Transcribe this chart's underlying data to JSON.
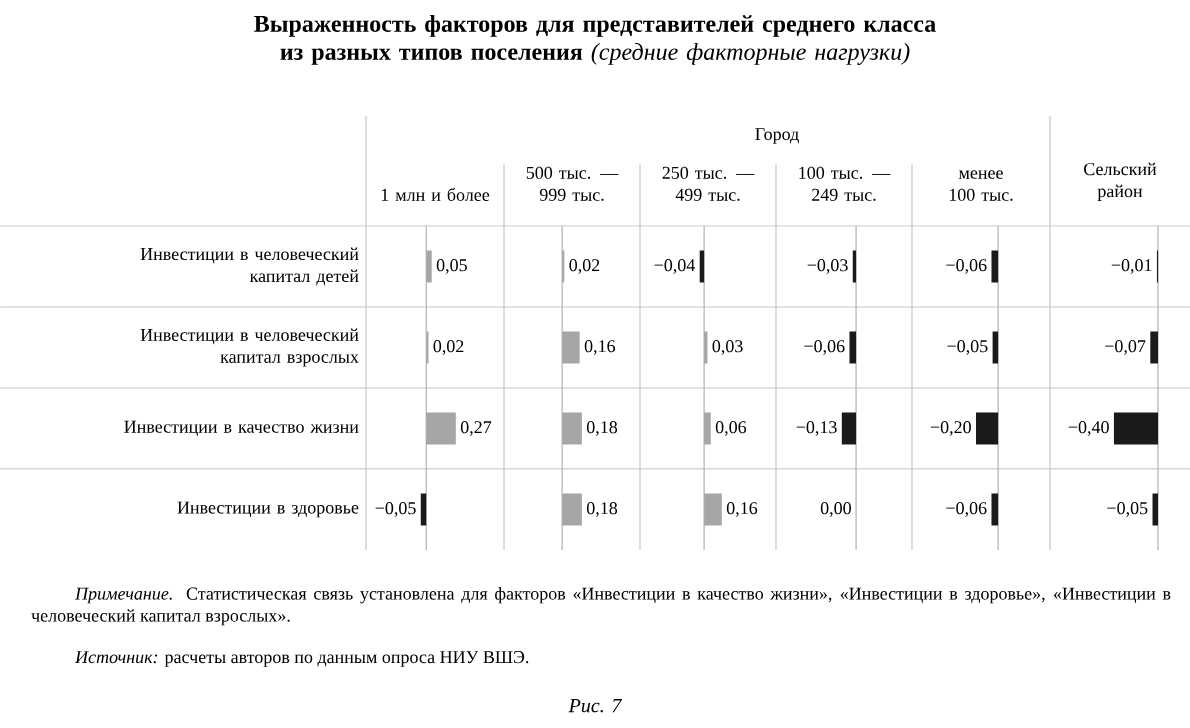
{
  "chart_data": [
    {
      "type": "bar",
      "orientation": "horizontal",
      "title": "**Выраженность факторов для представителей среднего класса из разных типов поселения** *(средние факторные нагрузки)*",
      "annotations": [
        "*Примечание.* Статистическая связь установлена для факторов «Инвестиции в качество жизни», «Инвестиции в здоровье», «Инвестиции в человеческий капитал взрослых».",
        "*Источник:* расчеты авторов по данным опроса НИУ ВШЭ.",
        "Рис. 7"
      ],
      "categories": [
        "Инвестиции в человеческий капитал детей",
        "Инвестиции в человеческий капитал взрослых",
        "Инвестиции в качество жизни",
        "Инвестиции в здоровье"
      ],
      "xlabel": "1 млн и более",
      "values": [
        0.05,
        0.02,
        0.27,
        -0.05
      ],
      "colors": [
        "#a6a6a6",
        "#a6a6a6",
        "#a6a6a6",
        "#1a1a1a"
      ],
      "value_labels": [
        "0,05",
        "0,02",
        "0,27",
        "−0,05"
      ],
      "xlim": [
        -0.55,
        0.71
      ],
      "tick_labels": "y"
    },
    {
      "type": "bar",
      "orientation": "horizontal",
      "title": "500 тыс. — 999 тыс.",
      "annotations": [
        "Город"
      ],
      "values": [
        0.02,
        0.16,
        0.18,
        0.18
      ],
      "colors": [
        "#a6a6a6",
        "#a6a6a6",
        "#a6a6a6",
        "#a6a6a6"
      ],
      "value_labels": [
        "0,02",
        "0,16",
        "0,18",
        "0,18"
      ],
      "xlim": [
        -0.53,
        0.71
      ],
      "tick_labels": false
    },
    {
      "type": "bar",
      "orientation": "horizontal",
      "title": "250 тыс. — 499 тыс.",
      "values": [
        -0.04,
        0.03,
        0.06,
        0.16
      ],
      "colors": [
        "#1a1a1a",
        "#a6a6a6",
        "#a6a6a6",
        "#a6a6a6"
      ],
      "value_labels": [
        "−0,04",
        "0,03",
        "0,06",
        "0,16"
      ],
      "xlim": [
        -0.58,
        0.65
      ],
      "tick_labels": false
    },
    {
      "type": "bar",
      "orientation": "horizontal",
      "title": "100 тыс. — 249 тыс.",
      "values": [
        -0.03,
        -0.06,
        -0.13,
        0.0
      ],
      "colors": [
        "#1a1a1a",
        "#1a1a1a",
        "#1a1a1a",
        "#1a1a1a"
      ],
      "value_labels": [
        "−0,03",
        "−0,06",
        "−0,13",
        "0,00"
      ],
      "xlim": [
        -0.73,
        0.51
      ],
      "tick_labels": false
    },
    {
      "type": "bar",
      "orientation": "horizontal",
      "title": "менее 100 тыс.",
      "values": [
        -0.06,
        -0.05,
        -0.2,
        -0.06
      ],
      "colors": [
        "#1a1a1a",
        "#1a1a1a",
        "#1a1a1a",
        "#1a1a1a"
      ],
      "value_labels": [
        "−0,06",
        "−0,05",
        "−0,20",
        "−0,06"
      ],
      "xlim": [
        -0.78,
        0.47
      ],
      "tick_labels": false
    },
    {
      "type": "bar",
      "orientation": "horizontal",
      "title": "Сельский район",
      "values": [
        -0.01,
        -0.07,
        -0.4,
        -0.05
      ],
      "colors": [
        "#1a1a1a",
        "#1a1a1a",
        "#1a1a1a",
        "#1a1a1a"
      ],
      "value_labels": [
        "−0,01",
        "−0,07",
        "−0,40",
        "−0,05"
      ],
      "xlim": [
        -0.98,
        0.29
      ],
      "tick_labels": false
    }
  ]
}
